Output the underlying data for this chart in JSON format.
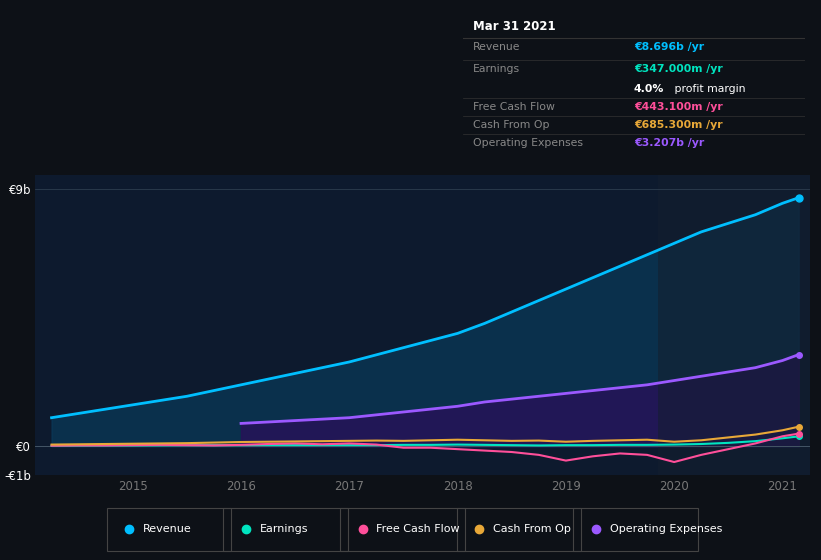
{
  "bg_color": "#0d1117",
  "plot_bg_color": "#0d1a2e",
  "x_years": [
    2014.25,
    2014.5,
    2014.75,
    2015.0,
    2015.25,
    2015.5,
    2015.75,
    2016.0,
    2016.25,
    2016.5,
    2016.75,
    2017.0,
    2017.25,
    2017.5,
    2017.75,
    2018.0,
    2018.25,
    2018.5,
    2018.75,
    2019.0,
    2019.25,
    2019.5,
    2019.75,
    2020.0,
    2020.25,
    2020.5,
    2020.75,
    2021.0,
    2021.15
  ],
  "revenue": [
    1.0,
    1.15,
    1.3,
    1.45,
    1.6,
    1.75,
    1.95,
    2.15,
    2.35,
    2.55,
    2.75,
    2.95,
    3.2,
    3.45,
    3.7,
    3.95,
    4.3,
    4.7,
    5.1,
    5.5,
    5.9,
    6.3,
    6.7,
    7.1,
    7.5,
    7.8,
    8.1,
    8.5,
    8.696
  ],
  "earnings": [
    0.02,
    0.025,
    0.03,
    0.03,
    0.035,
    0.04,
    0.04,
    0.04,
    0.04,
    0.04,
    0.04,
    0.04,
    0.04,
    0.05,
    0.05,
    0.06,
    0.05,
    0.04,
    0.03,
    0.04,
    0.04,
    0.05,
    0.05,
    0.06,
    0.08,
    0.12,
    0.18,
    0.28,
    0.347
  ],
  "free_cash_flow": [
    0.02,
    0.03,
    0.03,
    0.04,
    0.05,
    0.04,
    0.03,
    0.05,
    0.08,
    0.1,
    0.07,
    0.1,
    0.06,
    -0.05,
    -0.05,
    -0.1,
    -0.15,
    -0.2,
    -0.3,
    -0.5,
    -0.35,
    -0.25,
    -0.3,
    -0.55,
    -0.3,
    -0.1,
    0.1,
    0.35,
    0.443
  ],
  "cash_from_op": [
    0.06,
    0.07,
    0.08,
    0.09,
    0.1,
    0.11,
    0.13,
    0.15,
    0.16,
    0.17,
    0.18,
    0.19,
    0.2,
    0.19,
    0.21,
    0.23,
    0.21,
    0.19,
    0.2,
    0.16,
    0.19,
    0.21,
    0.23,
    0.16,
    0.21,
    0.31,
    0.41,
    0.56,
    0.685
  ],
  "op_expenses_x": [
    2016.0,
    2016.25,
    2016.5,
    2016.75,
    2017.0,
    2017.25,
    2017.5,
    2017.75,
    2018.0,
    2018.25,
    2018.5,
    2018.75,
    2019.0,
    2019.25,
    2019.5,
    2019.75,
    2020.0,
    2020.25,
    2020.5,
    2020.75,
    2021.0,
    2021.15
  ],
  "op_expenses": [
    0.8,
    0.85,
    0.9,
    0.95,
    1.0,
    1.1,
    1.2,
    1.3,
    1.4,
    1.55,
    1.65,
    1.75,
    1.85,
    1.95,
    2.05,
    2.15,
    2.3,
    2.45,
    2.6,
    2.75,
    3.0,
    3.207
  ],
  "revenue_color": "#00bfff",
  "earnings_color": "#00e5c0",
  "free_cash_flow_color": "#ff4f9a",
  "cash_from_op_color": "#e8a838",
  "op_expenses_color": "#9b59ff",
  "revenue_fill_color": "#0a3a5a",
  "op_expenses_fill_color": "#2a0f5a",
  "ylim": [
    -1.0,
    9.5
  ],
  "xlim": [
    2014.1,
    2021.25
  ],
  "yticks": [
    -1.0,
    0.0,
    9.0
  ],
  "ytick_labels": [
    "-€1b",
    "€0",
    "€9b"
  ],
  "xtick_years": [
    2015,
    2016,
    2017,
    2018,
    2019,
    2020,
    2021
  ],
  "tooltip_label_color": "#888888",
  "info": {
    "date": "Mar 31 2021",
    "revenue_val": "€8.696b /yr",
    "earnings_val": "€347.000m /yr",
    "profit_margin": "4.0%",
    "fcf_val": "€443.100m /yr",
    "cash_op_val": "€685.300m /yr",
    "op_exp_val": "€3.207b /yr"
  },
  "legend": [
    {
      "label": "Revenue",
      "color": "#00bfff"
    },
    {
      "label": "Earnings",
      "color": "#00e5c0"
    },
    {
      "label": "Free Cash Flow",
      "color": "#ff4f9a"
    },
    {
      "label": "Cash From Op",
      "color": "#e8a838"
    },
    {
      "label": "Operating Expenses",
      "color": "#9b59ff"
    }
  ]
}
